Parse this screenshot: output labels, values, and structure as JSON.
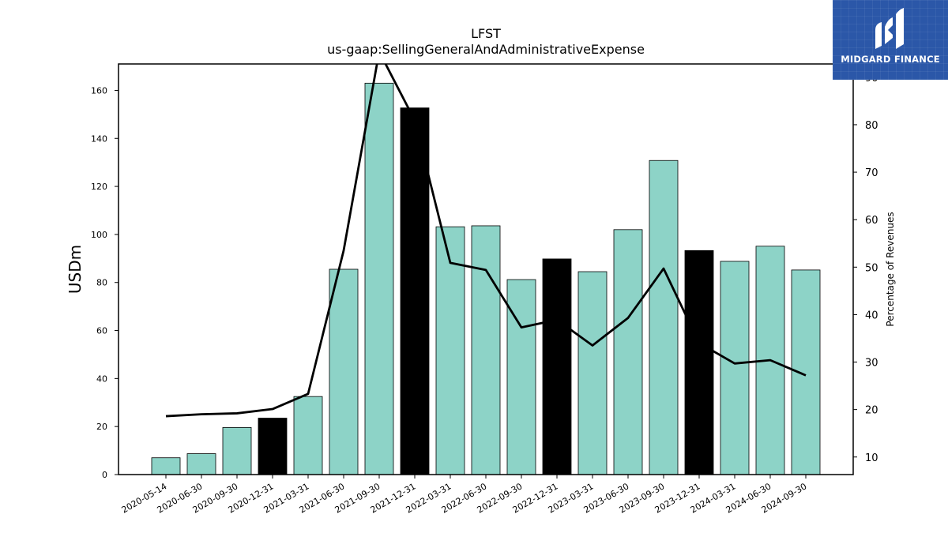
{
  "chart_data": {
    "type": "bar",
    "title": "LFST",
    "subtitle": "us-gaap:SellingGeneralAndAdministrativeExpense",
    "ylabel": "USDm",
    "y2label": "Percentage of Revenues",
    "ylim": [
      0,
      171
    ],
    "y2lim": [
      6.3,
      92.8
    ],
    "yticks": [
      0,
      20,
      40,
      60,
      80,
      100,
      120,
      140,
      160
    ],
    "y2ticks": [
      10,
      20,
      30,
      40,
      50,
      60,
      70,
      80,
      90
    ],
    "categories": [
      "2020-05-14",
      "2020-06-30",
      "2020-09-30",
      "2020-12-31",
      "2021-03-31",
      "2021-06-30",
      "2021-09-30",
      "2021-12-31",
      "2022-03-31",
      "2022-06-30",
      "2022-09-30",
      "2022-12-31",
      "2023-03-31",
      "2023-06-30",
      "2023-09-30",
      "2023-12-31",
      "2024-03-31",
      "2024-06-30",
      "2024-09-30"
    ],
    "values": [
      7.0,
      8.7,
      19.6,
      23.5,
      32.5,
      85.5,
      163.0,
      152.7,
      103.2,
      103.6,
      81.2,
      89.8,
      84.5,
      102.0,
      130.8,
      93.3,
      88.8,
      95.1,
      85.2
    ],
    "pct_of_revenues": [
      18.6,
      19.0,
      19.2,
      20.1,
      23.3,
      53.5,
      95.4,
      80.9,
      50.9,
      49.4,
      37.3,
      38.9,
      33.5,
      39.3,
      49.7,
      34.0,
      29.7,
      30.4,
      27.2
    ],
    "bar_colors": [
      "#8dd3c7",
      "#8dd3c7",
      "#8dd3c7",
      "#000000",
      "#8dd3c7",
      "#8dd3c7",
      "#8dd3c7",
      "#000000",
      "#8dd3c7",
      "#8dd3c7",
      "#8dd3c7",
      "#000000",
      "#8dd3c7",
      "#8dd3c7",
      "#8dd3c7",
      "#000000",
      "#8dd3c7",
      "#8dd3c7",
      "#8dd3c7"
    ],
    "line_color": "#000000",
    "grid": false
  },
  "logo": {
    "text": "MIDGARD FINANCE",
    "background": "#2b57a8"
  }
}
